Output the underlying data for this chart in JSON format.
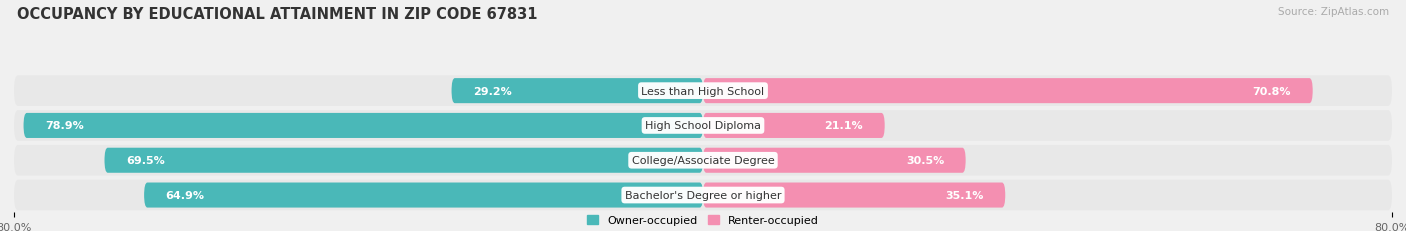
{
  "title": "OCCUPANCY BY EDUCATIONAL ATTAINMENT IN ZIP CODE 67831",
  "source": "Source: ZipAtlas.com",
  "categories": [
    "Less than High School",
    "High School Diploma",
    "College/Associate Degree",
    "Bachelor's Degree or higher"
  ],
  "owner_values": [
    29.2,
    78.9,
    69.5,
    64.9
  ],
  "renter_values": [
    70.8,
    21.1,
    30.5,
    35.1
  ],
  "owner_color": "#4ab8b8",
  "renter_color": "#f48fb1",
  "background_color": "#f0f0f0",
  "bar_bg_color": "#e0e0e0",
  "row_bg_color": "#e8e8e8",
  "title_fontsize": 10.5,
  "source_fontsize": 7.5,
  "label_fontsize": 8,
  "tick_fontsize": 8,
  "legend_fontsize": 8,
  "xlim_left": -80,
  "xlim_right": 80
}
